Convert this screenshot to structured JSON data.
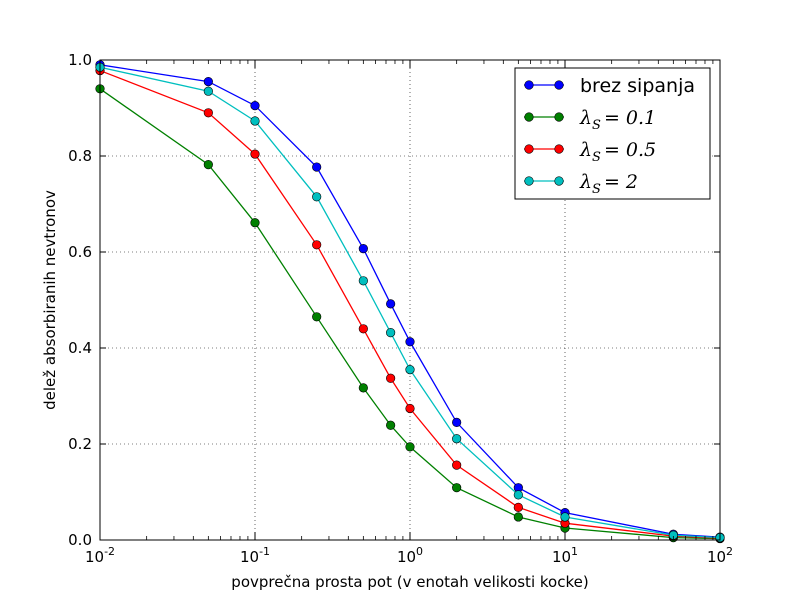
{
  "chart_data": {
    "type": "line",
    "xscale": "log",
    "xlim": [
      0.01,
      100
    ],
    "ylim": [
      0.0,
      1.0
    ],
    "grid": true,
    "legend_position": "top-right",
    "xlabel": "povprečna prosta pot (v enotah velikosti kocke)",
    "ylabel": "delež absorbiranih nevtronov",
    "x_ticks": [
      {
        "value": 0.01,
        "base": "10",
        "exp": "-2"
      },
      {
        "value": 0.1,
        "base": "10",
        "exp": "-1"
      },
      {
        "value": 1,
        "base": "10",
        "exp": "0"
      },
      {
        "value": 10,
        "base": "10",
        "exp": "1"
      },
      {
        "value": 100,
        "base": "10",
        "exp": "2"
      }
    ],
    "y_ticks": [
      {
        "value": 0.0,
        "label": "0.0"
      },
      {
        "value": 0.2,
        "label": "0.2"
      },
      {
        "value": 0.4,
        "label": "0.4"
      },
      {
        "value": 0.6,
        "label": "0.6"
      },
      {
        "value": 0.8,
        "label": "0.8"
      },
      {
        "value": 1.0,
        "label": "1.0"
      }
    ],
    "x": [
      0.01,
      0.05,
      0.1,
      0.25,
      0.5,
      0.75,
      1,
      2,
      5,
      10,
      50,
      100
    ],
    "series": [
      {
        "name": "brez sipanja",
        "name_math": false,
        "color": "#0000ff",
        "values": [
          0.99,
          0.955,
          0.905,
          0.777,
          0.607,
          0.492,
          0.413,
          0.245,
          0.109,
          0.057,
          0.012,
          0.006
        ]
      },
      {
        "name": "λ",
        "name_math": true,
        "sub": "S",
        "eq": "= 0.1",
        "color": "#008000",
        "values": [
          0.94,
          0.782,
          0.661,
          0.465,
          0.317,
          0.239,
          0.194,
          0.109,
          0.048,
          0.025,
          0.005,
          0.003
        ]
      },
      {
        "name": "λ",
        "name_math": true,
        "sub": "S",
        "eq": "= 0.5",
        "color": "#ff0000",
        "values": [
          0.978,
          0.89,
          0.804,
          0.615,
          0.44,
          0.337,
          0.274,
          0.156,
          0.068,
          0.035,
          0.008,
          0.004
        ]
      },
      {
        "name": "λ",
        "name_math": true,
        "sub": "S",
        "eq": "= 2",
        "color": "#00bfbf",
        "values": [
          0.985,
          0.935,
          0.873,
          0.715,
          0.54,
          0.432,
          0.355,
          0.211,
          0.094,
          0.048,
          0.01,
          0.005
        ]
      }
    ]
  }
}
